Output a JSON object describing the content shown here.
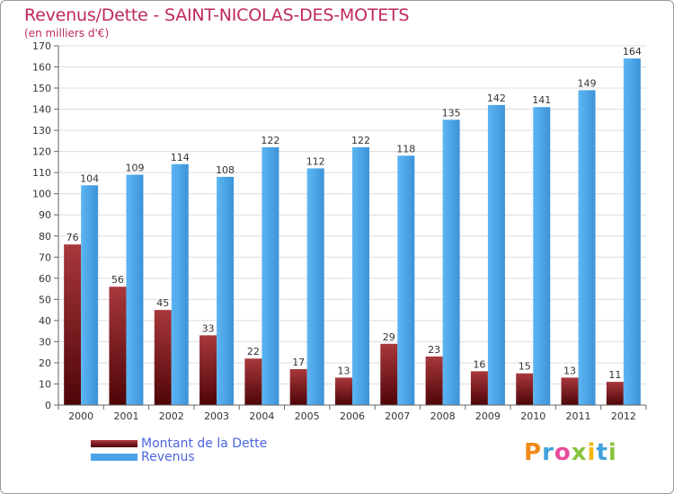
{
  "title": "Revenus/Dette - SAINT-NICOLAS-DES-MOTETS",
  "subtitle": "(en milliers d'€)",
  "logo": "Proxiti",
  "colors": {
    "dette": "#7a1418",
    "revenus": "#4aa3e8",
    "title": "#c0295a",
    "legend_text": "#4a64e0"
  },
  "chart_data": {
    "type": "bar",
    "categories": [
      "2000",
      "2001",
      "2002",
      "2003",
      "2004",
      "2005",
      "2006",
      "2007",
      "2008",
      "2009",
      "2010",
      "2011",
      "2012"
    ],
    "series": [
      {
        "name": "Montant de la Dette",
        "values": [
          76,
          56,
          45,
          33,
          22,
          17,
          13,
          29,
          23,
          16,
          15,
          13,
          11
        ]
      },
      {
        "name": "Revenus",
        "values": [
          104,
          109,
          114,
          108,
          122,
          112,
          122,
          118,
          135,
          142,
          141,
          149,
          164
        ]
      }
    ],
    "ylim": [
      0,
      170
    ],
    "yticks": [
      0,
      10,
      20,
      30,
      40,
      50,
      60,
      70,
      80,
      90,
      100,
      110,
      120,
      130,
      140,
      150,
      160,
      170
    ],
    "grid": true,
    "legend_position": "bottom-left"
  }
}
